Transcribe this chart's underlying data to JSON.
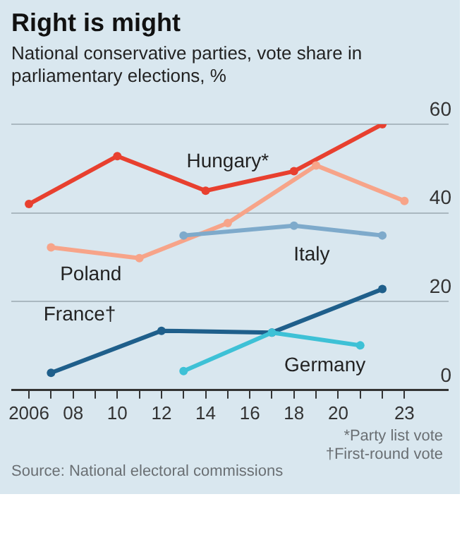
{
  "chart_data": {
    "type": "line",
    "title": "Right is might",
    "subtitle": "National conservative parties, vote share in parliamentary elections, %",
    "xlim": [
      2005.2,
      2025
    ],
    "ylim": [
      0,
      60
    ],
    "xticks": [
      {
        "value": 2006,
        "label": "2006"
      },
      {
        "value": 2007,
        "label": null
      },
      {
        "value": 2008,
        "label": "08"
      },
      {
        "value": 2009,
        "label": null
      },
      {
        "value": 2010,
        "label": "10"
      },
      {
        "value": 2011,
        "label": null
      },
      {
        "value": 2012,
        "label": "12"
      },
      {
        "value": 2013,
        "label": null
      },
      {
        "value": 2014,
        "label": "14"
      },
      {
        "value": 2015,
        "label": null
      },
      {
        "value": 2016,
        "label": "16"
      },
      {
        "value": 2017,
        "label": null
      },
      {
        "value": 2018,
        "label": "18"
      },
      {
        "value": 2019,
        "label": null
      },
      {
        "value": 2020,
        "label": "20"
      },
      {
        "value": 2021,
        "label": null
      },
      {
        "value": 2022,
        "label": null
      },
      {
        "value": 2023,
        "label": "23"
      }
    ],
    "yticks": [
      0,
      20,
      40,
      60
    ],
    "grid": "y",
    "legend": false,
    "marker": "circle",
    "line_style": "solid",
    "series": [
      {
        "name": "Hungary*",
        "color": "#e8402f",
        "x": [
          2006,
          2010,
          2014,
          2018,
          2022
        ],
        "values": [
          42,
          52.8,
          45,
          49.4,
          60
        ]
      },
      {
        "name": "Poland",
        "color": "#f7a489",
        "x": [
          2007,
          2011,
          2015,
          2019,
          2023
        ],
        "values": [
          32.2,
          29.8,
          37.7,
          50.7,
          42.7
        ]
      },
      {
        "name": "Italy",
        "color": "#7eaacb",
        "x": [
          2013,
          2018,
          2022
        ],
        "values": [
          34.9,
          37.1,
          34.9
        ]
      },
      {
        "name": "France†",
        "color": "#1f5f8b",
        "x": [
          2007,
          2012,
          2017,
          2022
        ],
        "values": [
          3.9,
          13.4,
          13,
          22.8
        ]
      },
      {
        "name": "Germany",
        "color": "#3ec1d6",
        "x": [
          2013,
          2017,
          2021
        ],
        "values": [
          4.3,
          13,
          10.1
        ]
      }
    ],
    "annotations": [
      "*Party list vote",
      "†First-round vote",
      "Source: National electoral commissions"
    ]
  }
}
